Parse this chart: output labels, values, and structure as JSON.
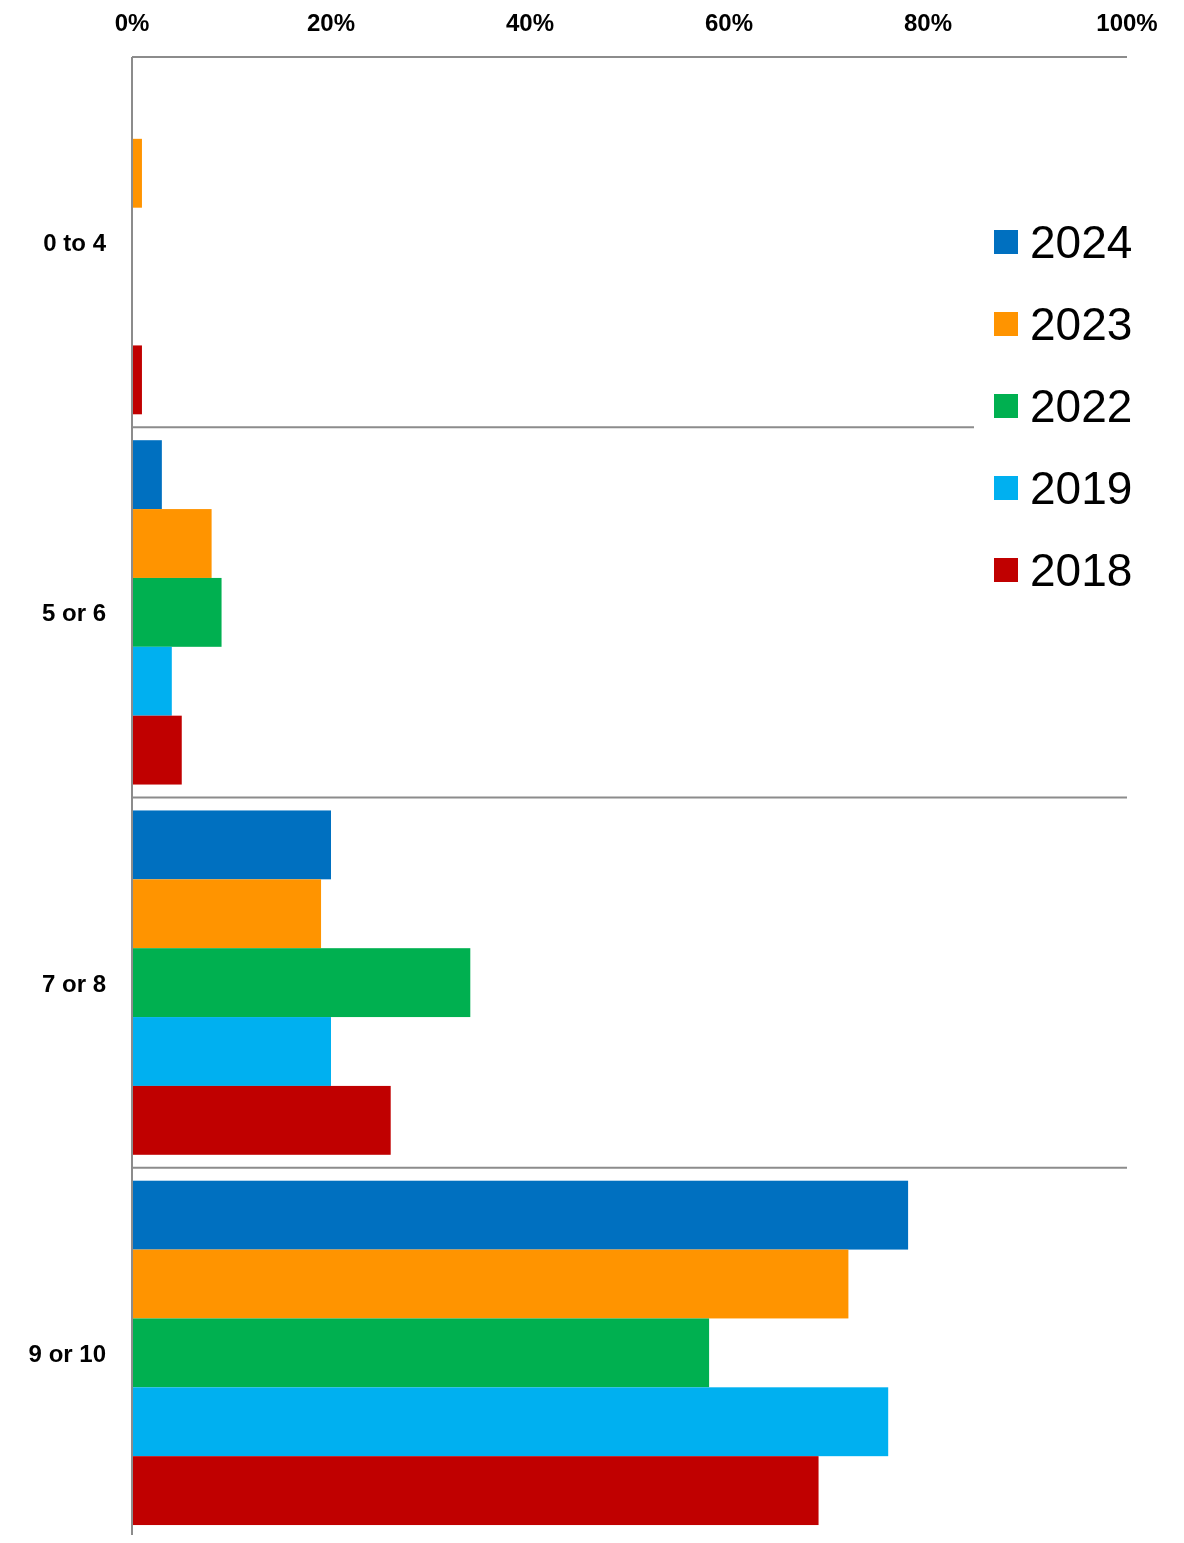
{
  "chart_data": {
    "type": "bar",
    "orientation": "horizontal",
    "categories": [
      "0 to 4",
      "5 or 6",
      "7 or 8",
      "9 or 10"
    ],
    "series": [
      {
        "name": "2024",
        "color": "#0070c0",
        "values": [
          null,
          3,
          20,
          78
        ]
      },
      {
        "name": "2023",
        "color": "#ff9400",
        "values": [
          1,
          8,
          19,
          72
        ]
      },
      {
        "name": "2022",
        "color": "#00b050",
        "values": [
          null,
          9,
          34,
          58
        ]
      },
      {
        "name": "2019",
        "color": "#00b0f0",
        "values": [
          null,
          4,
          20,
          76
        ]
      },
      {
        "name": "2018",
        "color": "#c00000",
        "values": [
          1,
          5,
          26,
          69
        ]
      }
    ],
    "xlim": [
      0,
      100
    ],
    "xticks": [
      {
        "value": 0,
        "label": "0%"
      },
      {
        "value": 20,
        "label": "20%"
      },
      {
        "value": 40,
        "label": "40%"
      },
      {
        "value": 60,
        "label": "60%"
      },
      {
        "value": 80,
        "label": "80%"
      },
      {
        "value": 100,
        "label": "100%"
      }
    ],
    "grid": "y",
    "legend": "top right"
  }
}
